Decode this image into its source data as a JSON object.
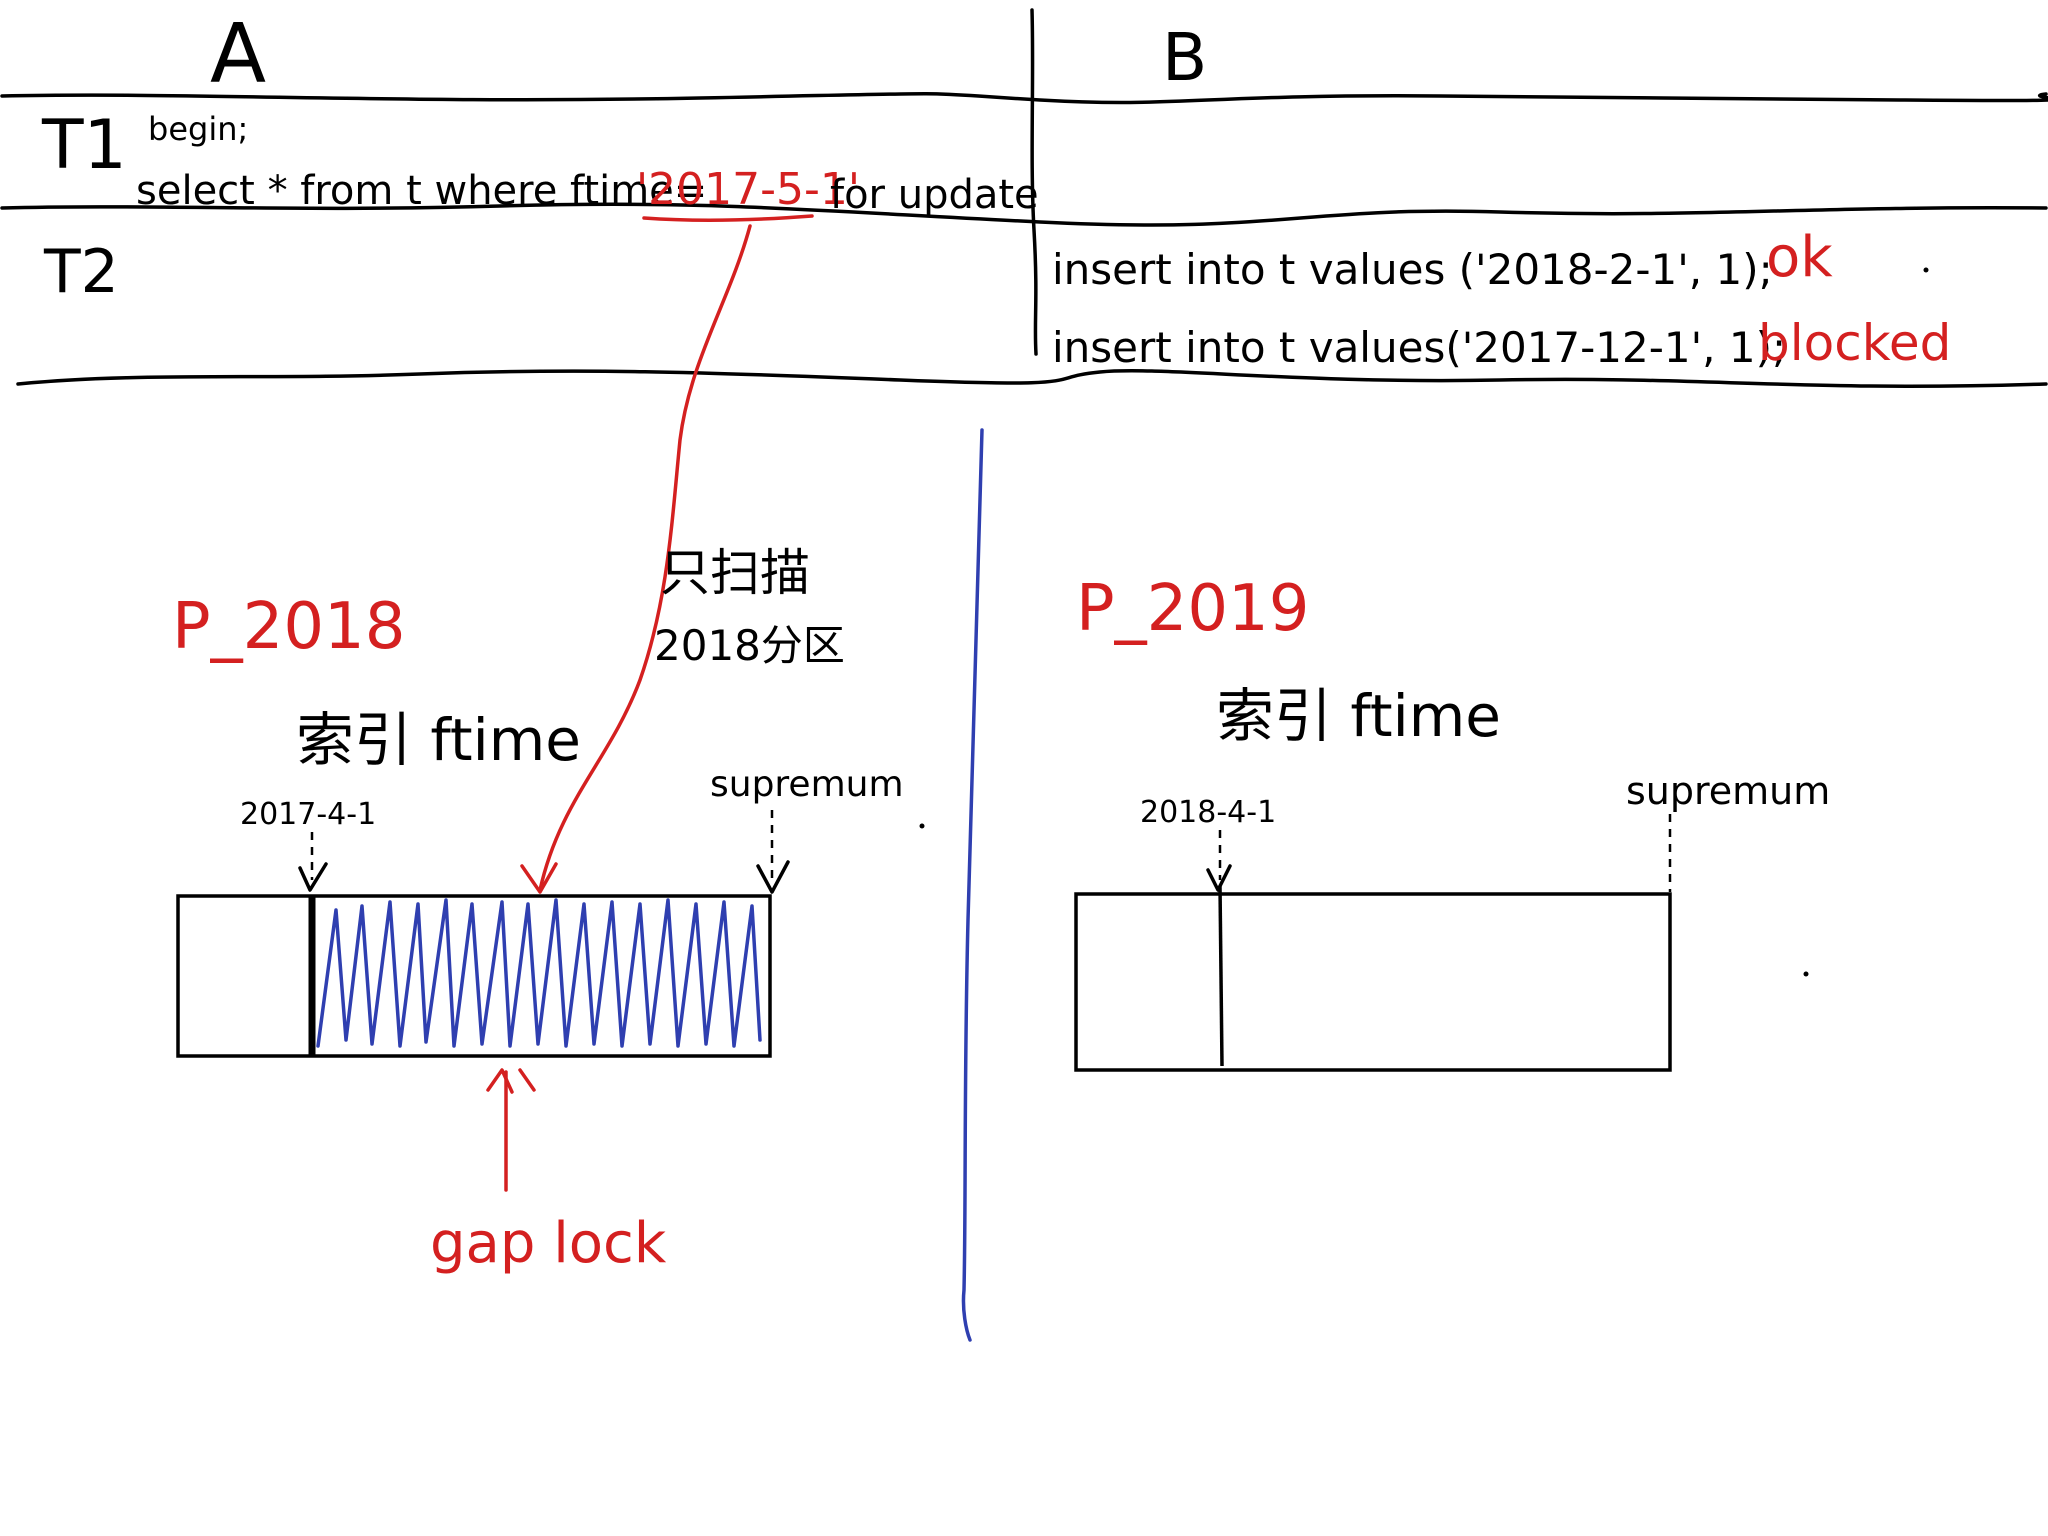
{
  "table": {
    "col_a": "A",
    "col_b": "B",
    "row_t1": "T1",
    "row_t2": "T2",
    "t1_begin": "begin;",
    "t1_query_prefix": "select * from t where ftime=",
    "t1_query_value": "'2017-5-1'",
    "t1_query_suffix": "for update",
    "t2_insert1": "insert into t values ('2018-2-1', 1);",
    "t2_insert1_result": "ok",
    "t2_insert2": "insert into t values('2017-12-1', 1);",
    "t2_insert2_result": "blocked"
  },
  "annotation": {
    "scan_note_line1": "只扫描",
    "scan_note_line2": "2018分区"
  },
  "partitions": [
    {
      "name": "P_2018",
      "index_label": "索引 ftime",
      "left_key": "2017-4-1",
      "right_key": "supremum",
      "gap_label": "gap lock"
    },
    {
      "name": "P_2019",
      "index_label": "索引 ftime",
      "left_key": "2018-4-1",
      "right_key": "supremum"
    }
  ],
  "colors": {
    "ink": "#000000",
    "red": "#d42020",
    "blue": "#2f3fb0"
  }
}
